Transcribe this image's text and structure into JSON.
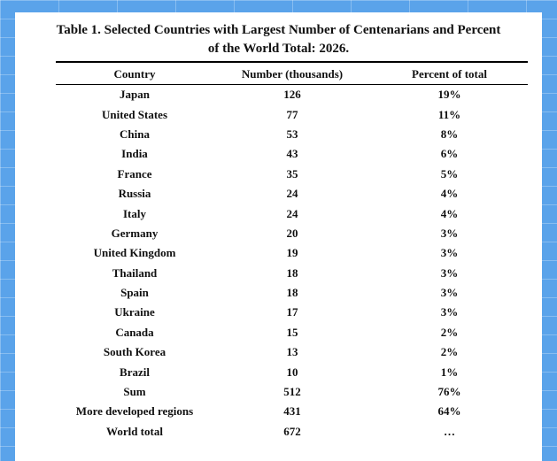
{
  "table": {
    "title_line1": "Table 1. Selected Countries with Largest Number of Centenarians and Percent",
    "title_line2": "of the World Total: 2026.",
    "headers": [
      "Country",
      "Number (thousands)",
      "Percent of total"
    ],
    "rows": [
      {
        "country": "Japan",
        "number": "126",
        "percent": "19%"
      },
      {
        "country": "United States",
        "number": "77",
        "percent": "11%"
      },
      {
        "country": "China",
        "number": "53",
        "percent": "8%"
      },
      {
        "country": "India",
        "number": "43",
        "percent": "6%"
      },
      {
        "country": "France",
        "number": "35",
        "percent": "5%"
      },
      {
        "country": "Russia",
        "number": "24",
        "percent": "4%"
      },
      {
        "country": "Italy",
        "number": "24",
        "percent": "4%"
      },
      {
        "country": "Germany",
        "number": "20",
        "percent": "3%"
      },
      {
        "country": "United Kingdom",
        "number": "19",
        "percent": "3%"
      },
      {
        "country": "Thailand",
        "number": "18",
        "percent": "3%"
      },
      {
        "country": "Spain",
        "number": "18",
        "percent": "3%"
      },
      {
        "country": "Ukraine",
        "number": "17",
        "percent": "3%"
      },
      {
        "country": "Canada",
        "number": "15",
        "percent": "2%"
      },
      {
        "country": "South Korea",
        "number": "13",
        "percent": "2%"
      },
      {
        "country": "Brazil",
        "number": "10",
        "percent": "1%"
      },
      {
        "country": "Sum",
        "number": "512",
        "percent": "76%"
      },
      {
        "country": "More developed regions",
        "number": "431",
        "percent": "64%"
      },
      {
        "country": "World total",
        "number": "672",
        "percent": "…"
      }
    ]
  },
  "colors": {
    "background": "#5aa3ea",
    "card": "#ffffff",
    "text": "#111111"
  }
}
